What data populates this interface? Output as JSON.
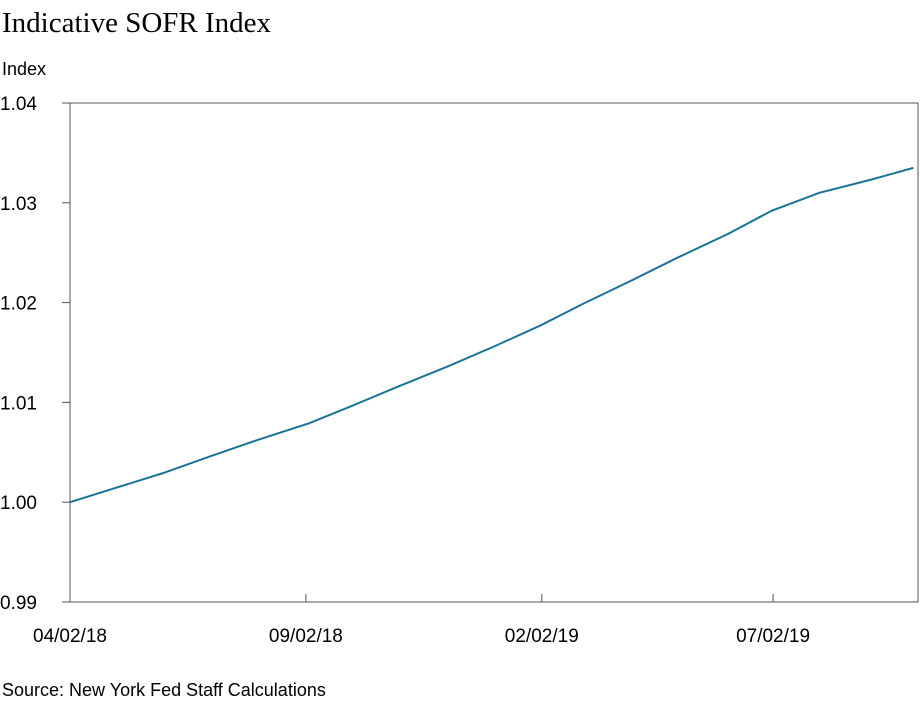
{
  "chart_data": {
    "type": "line",
    "title": "Indicative SOFR Index",
    "y_label": "Index",
    "source": "Source: New York Fed Staff Calculations",
    "x": [
      "2018-04-02",
      "2018-05-01",
      "2018-06-01",
      "2018-07-02",
      "2018-08-01",
      "2018-09-04",
      "2018-10-01",
      "2018-11-01",
      "2018-12-03",
      "2019-01-02",
      "2019-02-01",
      "2019-03-01",
      "2019-04-01",
      "2019-05-01",
      "2019-06-03",
      "2019-07-01",
      "2019-08-01",
      "2019-09-03",
      "2019-10-01"
    ],
    "series": [
      {
        "name": "Indicative SOFR Index",
        "color": "#1a7399",
        "values": [
          1.0,
          1.0014,
          1.0029,
          1.0046,
          1.0062,
          1.0079,
          1.0096,
          1.0116,
          1.0136,
          1.0156,
          1.0177,
          1.0199,
          1.0222,
          1.0245,
          1.0269,
          1.0292,
          1.031,
          1.0323,
          1.0335
        ]
      }
    ],
    "xlim": [
      "2018-04-02",
      "2019-10-04"
    ],
    "xticks": [
      {
        "value": "2018-04-02",
        "label": "04/02/18"
      },
      {
        "value": "2018-09-02",
        "label": "09/02/18"
      },
      {
        "value": "2019-02-02",
        "label": "02/02/19"
      },
      {
        "value": "2019-07-02",
        "label": "07/02/19"
      }
    ],
    "ylim": [
      0.99,
      1.04
    ],
    "yticks": [
      {
        "value": 0.99,
        "label": "0.99"
      },
      {
        "value": 1.0,
        "label": "1.00"
      },
      {
        "value": 1.01,
        "label": "1.01"
      },
      {
        "value": 1.02,
        "label": "1.02"
      },
      {
        "value": 1.03,
        "label": "1.03"
      },
      {
        "value": 1.04,
        "label": "1.04"
      }
    ],
    "grid": true
  }
}
